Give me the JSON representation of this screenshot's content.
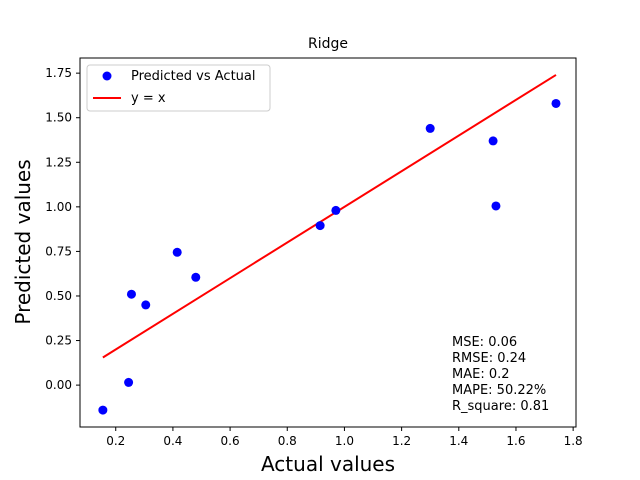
{
  "chart_data": {
    "type": "scatter",
    "title": "Ridge",
    "xlabel": "Actual values",
    "ylabel": "Predicted values",
    "xlim": [
      0.075,
      1.81
    ],
    "ylim": [
      -0.235,
      1.835
    ],
    "xticks": [
      0.2,
      0.4,
      0.6,
      0.8,
      1.0,
      1.2,
      1.4,
      1.6,
      1.8
    ],
    "xtick_labels": [
      "0.2",
      "0.4",
      "0.6",
      "0.8",
      "1.0",
      "1.2",
      "1.4",
      "1.6",
      "1.8"
    ],
    "yticks": [
      0.0,
      0.25,
      0.5,
      0.75,
      1.0,
      1.25,
      1.5,
      1.75
    ],
    "ytick_labels": [
      "0.00",
      "0.25",
      "0.50",
      "0.75",
      "1.00",
      "1.25",
      "1.50",
      "1.75"
    ],
    "grid": false,
    "legend_position": "top-left",
    "series": [
      {
        "name": "Predicted vs Actual",
        "kind": "scatter",
        "color": "#0000ff",
        "points": [
          {
            "x": 0.155,
            "y": -0.14
          },
          {
            "x": 0.245,
            "y": 0.015
          },
          {
            "x": 0.255,
            "y": 0.51
          },
          {
            "x": 0.305,
            "y": 0.45
          },
          {
            "x": 0.415,
            "y": 0.745
          },
          {
            "x": 0.48,
            "y": 0.605
          },
          {
            "x": 0.915,
            "y": 0.895
          },
          {
            "x": 0.97,
            "y": 0.98
          },
          {
            "x": 1.3,
            "y": 1.44
          },
          {
            "x": 1.52,
            "y": 1.37
          },
          {
            "x": 1.53,
            "y": 1.005
          },
          {
            "x": 1.74,
            "y": 1.58
          }
        ]
      },
      {
        "name": "y = x",
        "kind": "line",
        "color": "#ff0000",
        "points": [
          {
            "x": 0.155,
            "y": 0.155
          },
          {
            "x": 1.74,
            "y": 1.74
          }
        ]
      }
    ],
    "annotations": [
      "MSE: 0.06",
      "RMSE: 0.24",
      "MAE: 0.2",
      "MAPE: 50.22%",
      "R_square: 0.81"
    ]
  }
}
